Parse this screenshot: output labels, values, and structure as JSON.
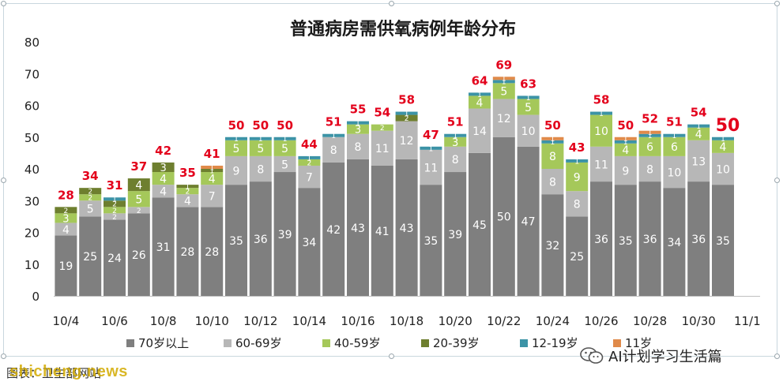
{
  "chart_data": {
    "type": "bar",
    "stacked": true,
    "title": "普通病房需供氧病例年龄分布",
    "ylim": [
      0,
      80
    ],
    "yticks": [
      0,
      10,
      20,
      30,
      40,
      50,
      60,
      70,
      80
    ],
    "grid": false,
    "legend_position": "bottom",
    "categories": [
      "10/4",
      "10/5",
      "10/6",
      "10/7",
      "10/8",
      "10/9",
      "10/10",
      "10/11",
      "10/12",
      "10/13",
      "10/14",
      "10/15",
      "10/16",
      "10/17",
      "10/18",
      "10/19",
      "10/20",
      "10/21",
      "10/22",
      "10/23",
      "10/24",
      "10/25",
      "10/26",
      "10/27",
      "10/28",
      "10/29",
      "10/30",
      "10/31"
    ],
    "xtick_labels": [
      "10/4",
      "10/6",
      "10/8",
      "10/10",
      "10/12",
      "10/14",
      "10/16",
      "10/18",
      "10/20",
      "10/22",
      "10/24",
      "10/26",
      "10/28",
      "10/30",
      "11/1"
    ],
    "series": [
      {
        "name": "70岁以上",
        "color": "#7f7f7f",
        "label_color": "#ffffff",
        "values": [
          19,
          25,
          24,
          26,
          31,
          28,
          28,
          35,
          36,
          39,
          34,
          42,
          43,
          41,
          43,
          35,
          39,
          45,
          50,
          47,
          32,
          25,
          36,
          35,
          36,
          34,
          36,
          35
        ]
      },
      {
        "name": "60-69岁",
        "color": "#b7b7b7",
        "label_color": "#ffffff",
        "values": [
          4,
          5,
          2,
          2,
          4,
          4,
          7,
          9,
          8,
          5,
          7,
          8,
          8,
          11,
          12,
          11,
          8,
          14,
          12,
          10,
          8,
          8,
          11,
          9,
          8,
          10,
          13,
          10
        ]
      },
      {
        "name": "40-59岁",
        "color": "#a5c85a",
        "label_color": "#ffffff",
        "values": [
          3,
          2,
          2,
          5,
          4,
          2,
          4,
          5,
          5,
          5,
          2,
          0,
          3,
          2,
          0,
          0,
          3,
          4,
          5,
          5,
          8,
          9,
          10,
          4,
          6,
          6,
          4,
          4
        ]
      },
      {
        "name": "20-39岁",
        "color": "#6e7f2f",
        "label_color": "#ffffff",
        "values": [
          2,
          2,
          2,
          4,
          3,
          1,
          1,
          0,
          0,
          0,
          0,
          0,
          0,
          0,
          2,
          0,
          0,
          0,
          0,
          0,
          0,
          0,
          0,
          0,
          0,
          0,
          0,
          0
        ]
      },
      {
        "name": "12-19岁",
        "color": "#3c93a6",
        "label_color": "#ffffff",
        "values": [
          0,
          0,
          1,
          0,
          0,
          0,
          0,
          1,
          1,
          1,
          1,
          1,
          1,
          0,
          1,
          1,
          1,
          1,
          1,
          1,
          1,
          1,
          1,
          1,
          1,
          1,
          1,
          1
        ]
      },
      {
        "name": "11岁",
        "color": "#e08a4a",
        "label_color": "#ffffff",
        "values": [
          0,
          0,
          0,
          0,
          0,
          0,
          1,
          0,
          0,
          0,
          0,
          0,
          0,
          0,
          0,
          0,
          0,
          0,
          1,
          0,
          1,
          0,
          0,
          1,
          1,
          0,
          0,
          0
        ]
      }
    ],
    "totals": [
      28,
      34,
      31,
      37,
      42,
      35,
      41,
      50,
      50,
      50,
      44,
      51,
      55,
      54,
      58,
      47,
      51,
      64,
      69,
      63,
      50,
      43,
      58,
      50,
      52,
      51,
      54,
      50
    ],
    "highlight_last_total": true
  },
  "footer": {
    "left_text": "图表：卫生部网站",
    "logo_text": "shicheng.news",
    "right_text": "AI计划学习生活篇"
  }
}
